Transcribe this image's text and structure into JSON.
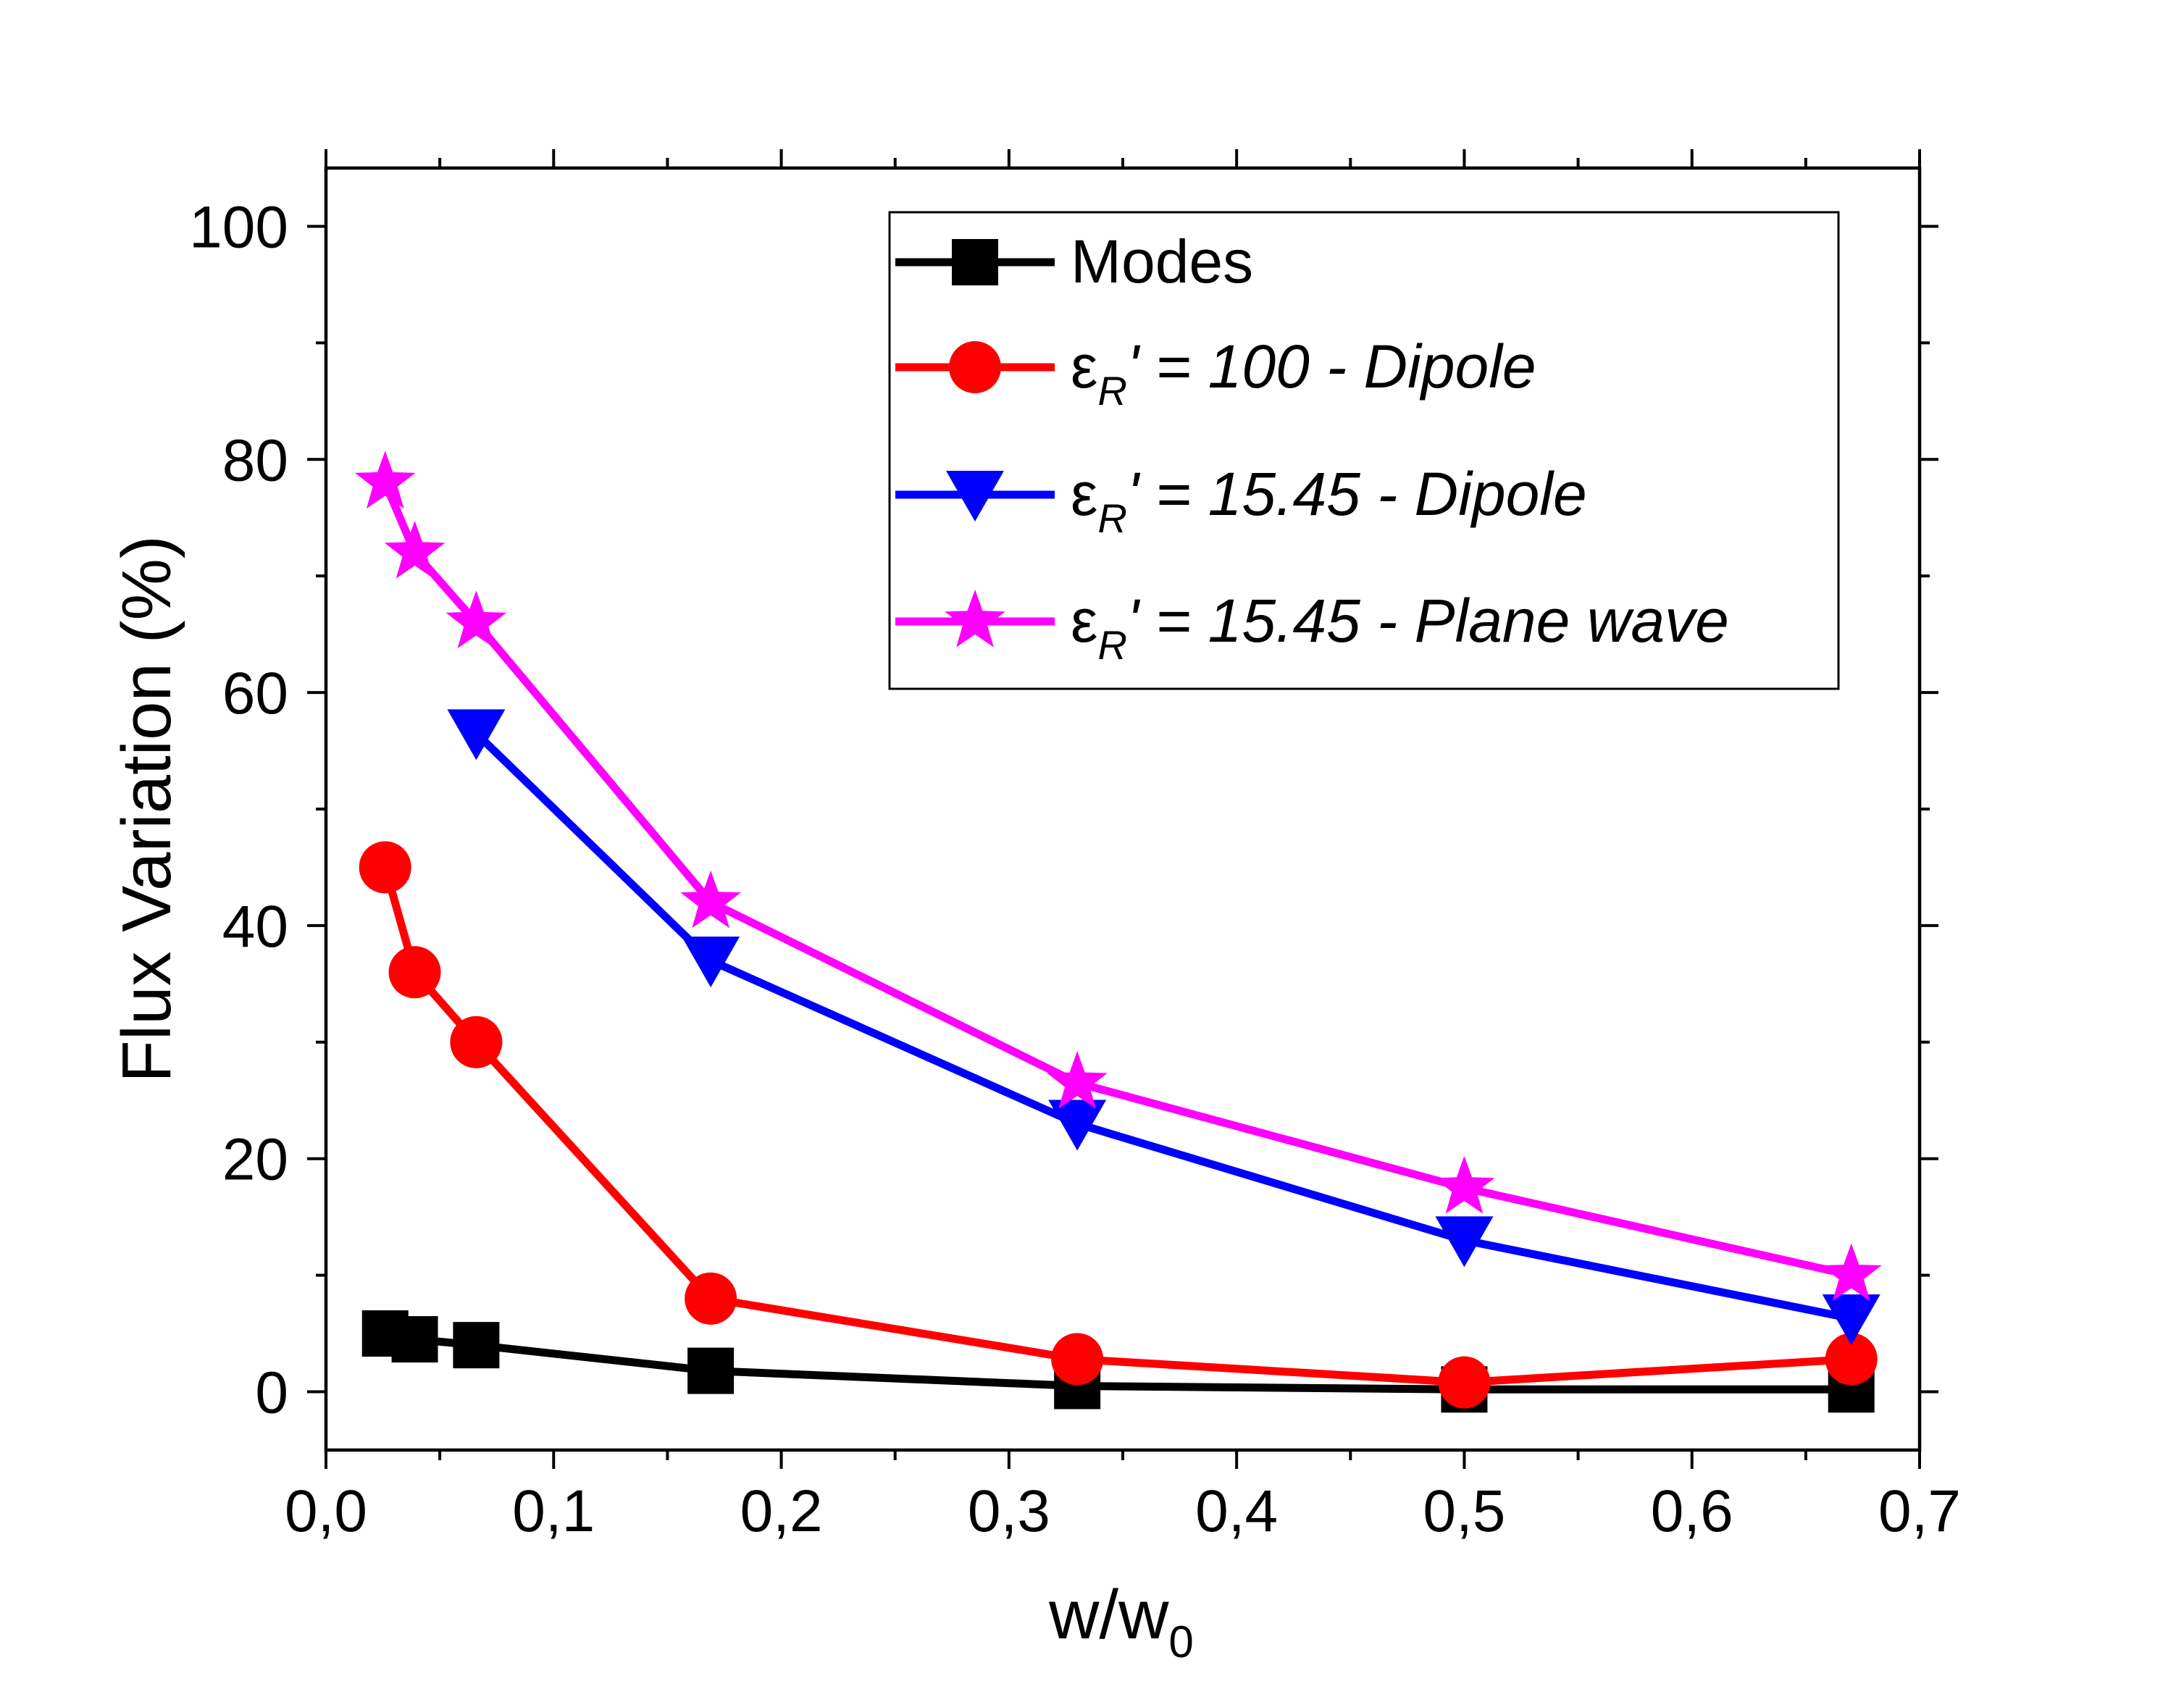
{
  "chart_data": {
    "type": "line",
    "title": "",
    "xlabel": "w/w",
    "xlabel_subscript": "0",
    "ylabel": "Flux Variation (%)",
    "xlim": [
      0.0,
      0.7
    ],
    "ylim": [
      -5,
      105
    ],
    "x_ticks": [
      0.0,
      0.1,
      0.2,
      0.3,
      0.4,
      0.5,
      0.6,
      0.7
    ],
    "x_tick_labels": [
      "0,0",
      "0,1",
      "0,2",
      "0,3",
      "0,4",
      "0,5",
      "0,6",
      "0,7"
    ],
    "y_ticks": [
      0,
      20,
      40,
      60,
      80,
      100
    ],
    "y_tick_labels": [
      "0",
      "20",
      "40",
      "60",
      "80",
      "100"
    ],
    "grid": false,
    "legend_position": "top-right",
    "series": [
      {
        "name": "Modes",
        "color": "#000000",
        "marker": "square",
        "x": [
          0.026,
          0.039,
          0.066,
          0.169,
          0.33,
          0.5,
          0.67
        ],
        "y": [
          5.0,
          4.5,
          4.0,
          1.8,
          0.5,
          0.2,
          0.2
        ]
      },
      {
        "name": "ε_R' = 100 - Dipole",
        "legend_prefix": "ε",
        "legend_sub": "R",
        "legend_suffix": "' = 100 - Dipole",
        "color": "#ff0000",
        "marker": "circle",
        "x": [
          0.026,
          0.039,
          0.066,
          0.169,
          0.33,
          0.5,
          0.67
        ],
        "y": [
          45.0,
          36.0,
          30.0,
          8.0,
          2.8,
          0.8,
          2.8
        ]
      },
      {
        "name": "ε_R' = 15.45 - Dipole",
        "legend_prefix": "ε",
        "legend_sub": "R",
        "legend_suffix": "' = 15.45 - Dipole",
        "color": "#0000ff",
        "marker": "triangle-down",
        "x": [
          0.066,
          0.169,
          0.33,
          0.5,
          0.67
        ],
        "y": [
          56.5,
          37.0,
          23.0,
          13.0,
          6.3
        ]
      },
      {
        "name": "ε_R' = 15.45 - Plane wave",
        "legend_prefix": "ε",
        "legend_sub": "R",
        "legend_suffix": "' = 15.45 - Plane wave",
        "color": "#ff00ff",
        "marker": "star",
        "x": [
          0.026,
          0.039,
          0.066,
          0.169,
          0.33,
          0.5,
          0.67
        ],
        "y": [
          78.0,
          72.0,
          66.0,
          42.0,
          26.5,
          17.5,
          10.0
        ]
      }
    ]
  }
}
